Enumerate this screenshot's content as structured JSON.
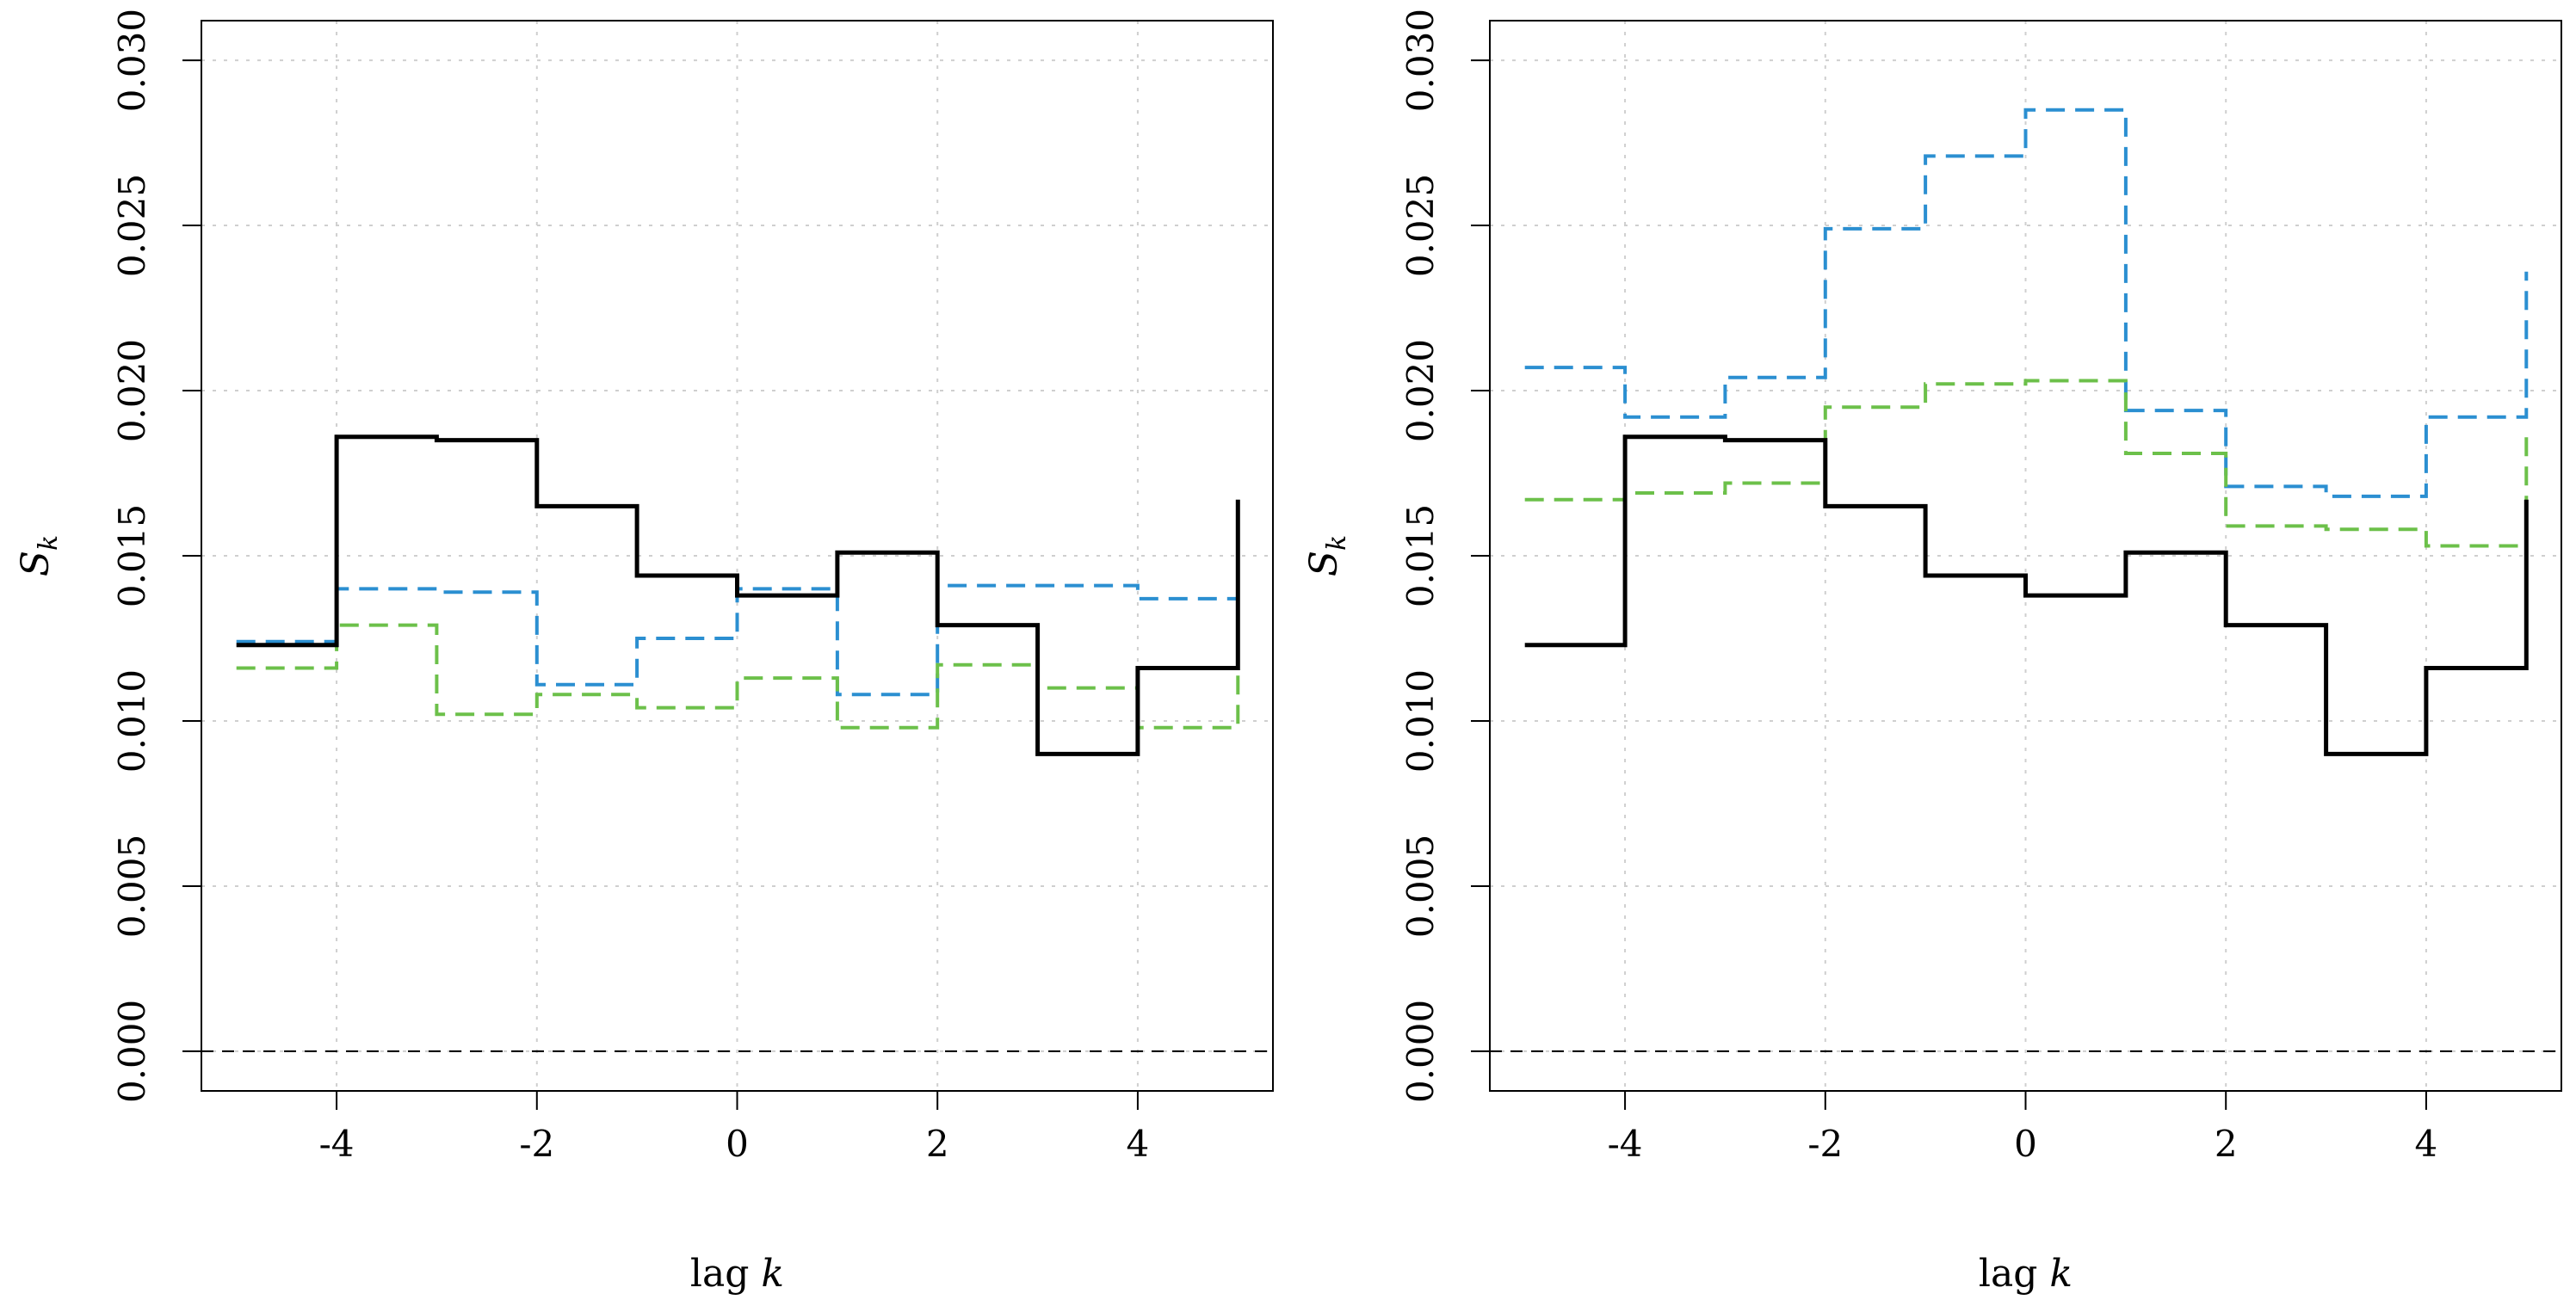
{
  "chart_data": [
    {
      "type": "line",
      "step": true,
      "title": "",
      "xlabel": {
        "prefix": "lag ",
        "var": "k"
      },
      "ylabel": {
        "var": "S",
        "sub": "k"
      },
      "xlim": [
        -5.35,
        5.35
      ],
      "ylim": [
        -0.0012,
        0.0312
      ],
      "xticks": [
        -4,
        -2,
        0,
        2,
        4
      ],
      "xtick_labels": [
        "-4",
        "-2",
        "0",
        "2",
        "4"
      ],
      "yticks": [
        0,
        0.005,
        0.01,
        0.015,
        0.02,
        0.025,
        0.03
      ],
      "ytick_labels": [
        "0.000",
        "0.005",
        "0.010",
        "0.015",
        "0.020",
        "0.025",
        "0.030"
      ],
      "grid": true,
      "reference_line_y": 0,
      "x_edges": [
        -5,
        -4,
        -3,
        -2,
        -1,
        0,
        1,
        2,
        3,
        4,
        5
      ],
      "series": [
        {
          "name": "black solid",
          "color": "#000000",
          "dash": "solid",
          "values": [
            0.0123,
            0.0186,
            0.0185,
            0.0165,
            0.0144,
            0.0138,
            0.0151,
            0.0129,
            0.009,
            0.0116
          ],
          "end_value": 0.0167
        },
        {
          "name": "blue dashed",
          "color": "#2b8fd1",
          "dash": "dashed",
          "values": [
            0.0124,
            0.014,
            0.0139,
            0.0111,
            0.0125,
            0.014,
            0.0108,
            0.0141,
            0.0141,
            0.0137
          ],
          "end_value": 0.0149
        },
        {
          "name": "green dashed",
          "color": "#6cc04a",
          "dash": "dashed",
          "values": [
            0.0116,
            0.0129,
            0.0102,
            0.0108,
            0.0104,
            0.0113,
            0.0098,
            0.0117,
            0.011,
            0.0098
          ],
          "end_value": 0.0114
        }
      ]
    },
    {
      "type": "line",
      "step": true,
      "title": "",
      "xlabel": {
        "prefix": "lag ",
        "var": "k"
      },
      "ylabel": {
        "var": "S",
        "sub": "k"
      },
      "xlim": [
        -5.35,
        5.35
      ],
      "ylim": [
        -0.0012,
        0.0312
      ],
      "xticks": [
        -4,
        -2,
        0,
        2,
        4
      ],
      "xtick_labels": [
        "-4",
        "-2",
        "0",
        "2",
        "4"
      ],
      "yticks": [
        0,
        0.005,
        0.01,
        0.015,
        0.02,
        0.025,
        0.03
      ],
      "ytick_labels": [
        "0.000",
        "0.005",
        "0.010",
        "0.015",
        "0.020",
        "0.025",
        "0.030"
      ],
      "grid": true,
      "reference_line_y": 0,
      "x_edges": [
        -5,
        -4,
        -3,
        -2,
        -1,
        0,
        1,
        2,
        3,
        4,
        5
      ],
      "series": [
        {
          "name": "black solid",
          "color": "#000000",
          "dash": "solid",
          "values": [
            0.0123,
            0.0186,
            0.0185,
            0.0165,
            0.0144,
            0.0138,
            0.0151,
            0.0129,
            0.009,
            0.0116
          ],
          "end_value": 0.0167
        },
        {
          "name": "blue dashed",
          "color": "#2b8fd1",
          "dash": "dashed",
          "values": [
            0.0207,
            0.0192,
            0.0204,
            0.0249,
            0.0271,
            0.0285,
            0.0194,
            0.0171,
            0.0168,
            0.0192
          ],
          "end_value": 0.0236
        },
        {
          "name": "green dashed",
          "color": "#6cc04a",
          "dash": "dashed",
          "values": [
            0.0167,
            0.0169,
            0.0172,
            0.0195,
            0.0202,
            0.0203,
            0.0181,
            0.0159,
            0.0158,
            0.0153
          ],
          "end_value": 0.0188
        }
      ]
    }
  ]
}
